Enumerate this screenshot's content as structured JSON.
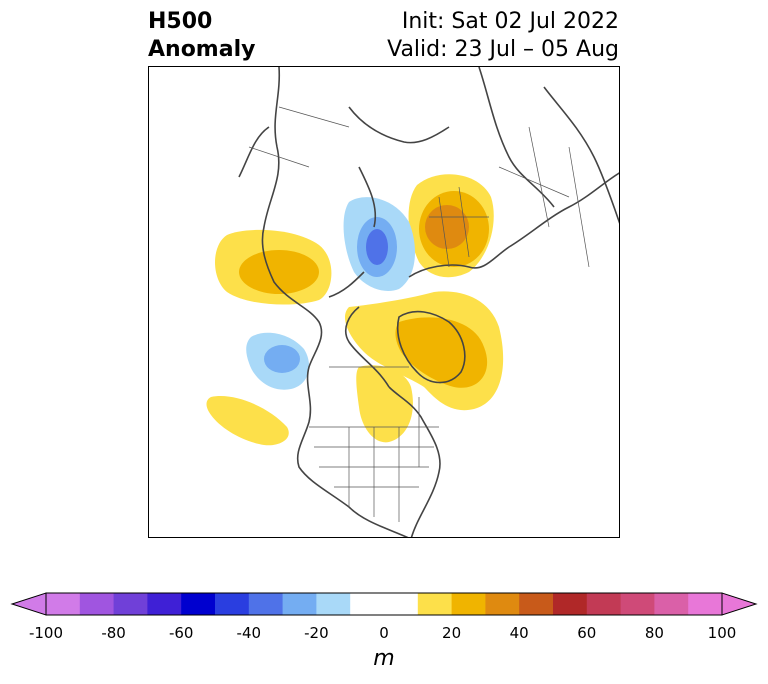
{
  "title": {
    "left_line1": "H500",
    "left_line2": "Anomaly",
    "init": "Init: Sat 02 Jul 2022",
    "valid": "Valid: 23 Jul – 05 Aug"
  },
  "map": {
    "projection": "north-polar-stereographic",
    "region": "Northern Hemisphere / North America",
    "anomalies": [
      {
        "sign": "positive",
        "location": "Gulf of Alaska / NE Pacific",
        "peak_m": 25
      },
      {
        "sign": "positive",
        "location": "Scandinavia / Northern Europe",
        "peak_m": 45
      },
      {
        "sign": "positive",
        "location": "Greenland / Canadian Arctic",
        "peak_m": 30
      },
      {
        "sign": "positive",
        "location": "Hudson Bay / Central Canada",
        "peak_m": 25
      },
      {
        "sign": "positive",
        "location": "North Pacific (south of Aleutians)",
        "peak_m": 15
      },
      {
        "sign": "negative",
        "location": "Siberia / Arctic",
        "peak_m": -40
      },
      {
        "sign": "negative",
        "location": "NE Pacific near Gulf of Alaska coast",
        "peak_m": -30
      }
    ]
  },
  "colorbar": {
    "unit": "m",
    "min": -100,
    "max": 100,
    "step": 10,
    "extend": "both",
    "ticks": [
      "-100",
      "-80",
      "-60",
      "-40",
      "-20",
      "0",
      "20",
      "40",
      "60",
      "80",
      "100"
    ],
    "colors": [
      "#d17be8",
      "#a055e0",
      "#7040d8",
      "#3f20d6",
      "#0000cf",
      "#2a3ee0",
      "#4f72e8",
      "#74adf2",
      "#a9d9f8",
      "#ffffff",
      "#ffffff",
      "#fde04a",
      "#f0b400",
      "#df8a10",
      "#c85a1a",
      "#b02828",
      "#c23a55",
      "#cf4a78",
      "#da60a8",
      "#e877d8"
    ],
    "color_neg_extend": "#d17be8",
    "color_pos_extend": "#e877d8"
  }
}
